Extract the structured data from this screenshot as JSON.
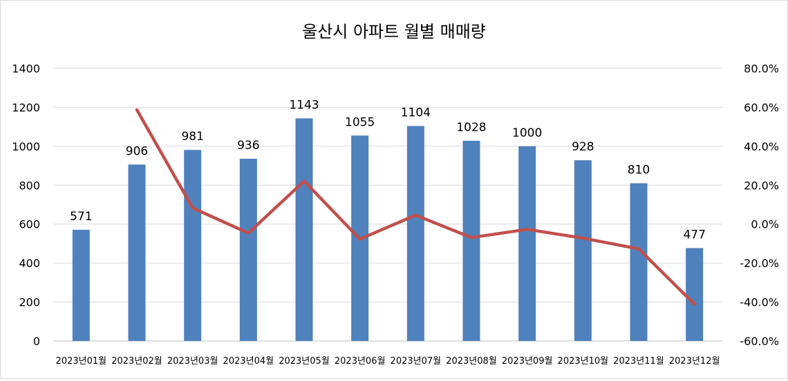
{
  "chart_data": {
    "type": "bar",
    "title": "울산시 아파트 월별 매매량",
    "categories": [
      "2023년01월",
      "2023년02월",
      "2023년03월",
      "2023년04월",
      "2023년05월",
      "2023년06월",
      "2023년07월",
      "2023년08월",
      "2023년09월",
      "2023년10월",
      "2023년11월",
      "2023년12월"
    ],
    "series": [
      {
        "type": "bar",
        "axis": "left",
        "color": "#4f81bd",
        "values": [
          571,
          906,
          981,
          936,
          1143,
          1055,
          1104,
          1028,
          1000,
          928,
          810,
          477
        ],
        "data_labels": true
      },
      {
        "type": "line",
        "axis": "right",
        "color": "#c0504d",
        "values": [
          null,
          58.7,
          8.3,
          -4.6,
          22.1,
          -7.7,
          4.6,
          -6.9,
          -2.7,
          -7.2,
          -12.7,
          -41.1
        ]
      }
    ],
    "ylim": [
      0,
      1400
    ],
    "y_ticks": [
      "0",
      "200",
      "400",
      "600",
      "800",
      "1000",
      "1200",
      "1400"
    ],
    "y2lim": [
      -60,
      80
    ],
    "y2_ticks": [
      "-60.0%",
      "-40.0%",
      "-20.0%",
      "0.0%",
      "20.0%",
      "40.0%",
      "60.0%",
      "80.0%"
    ],
    "grid": true,
    "legend": "none"
  }
}
